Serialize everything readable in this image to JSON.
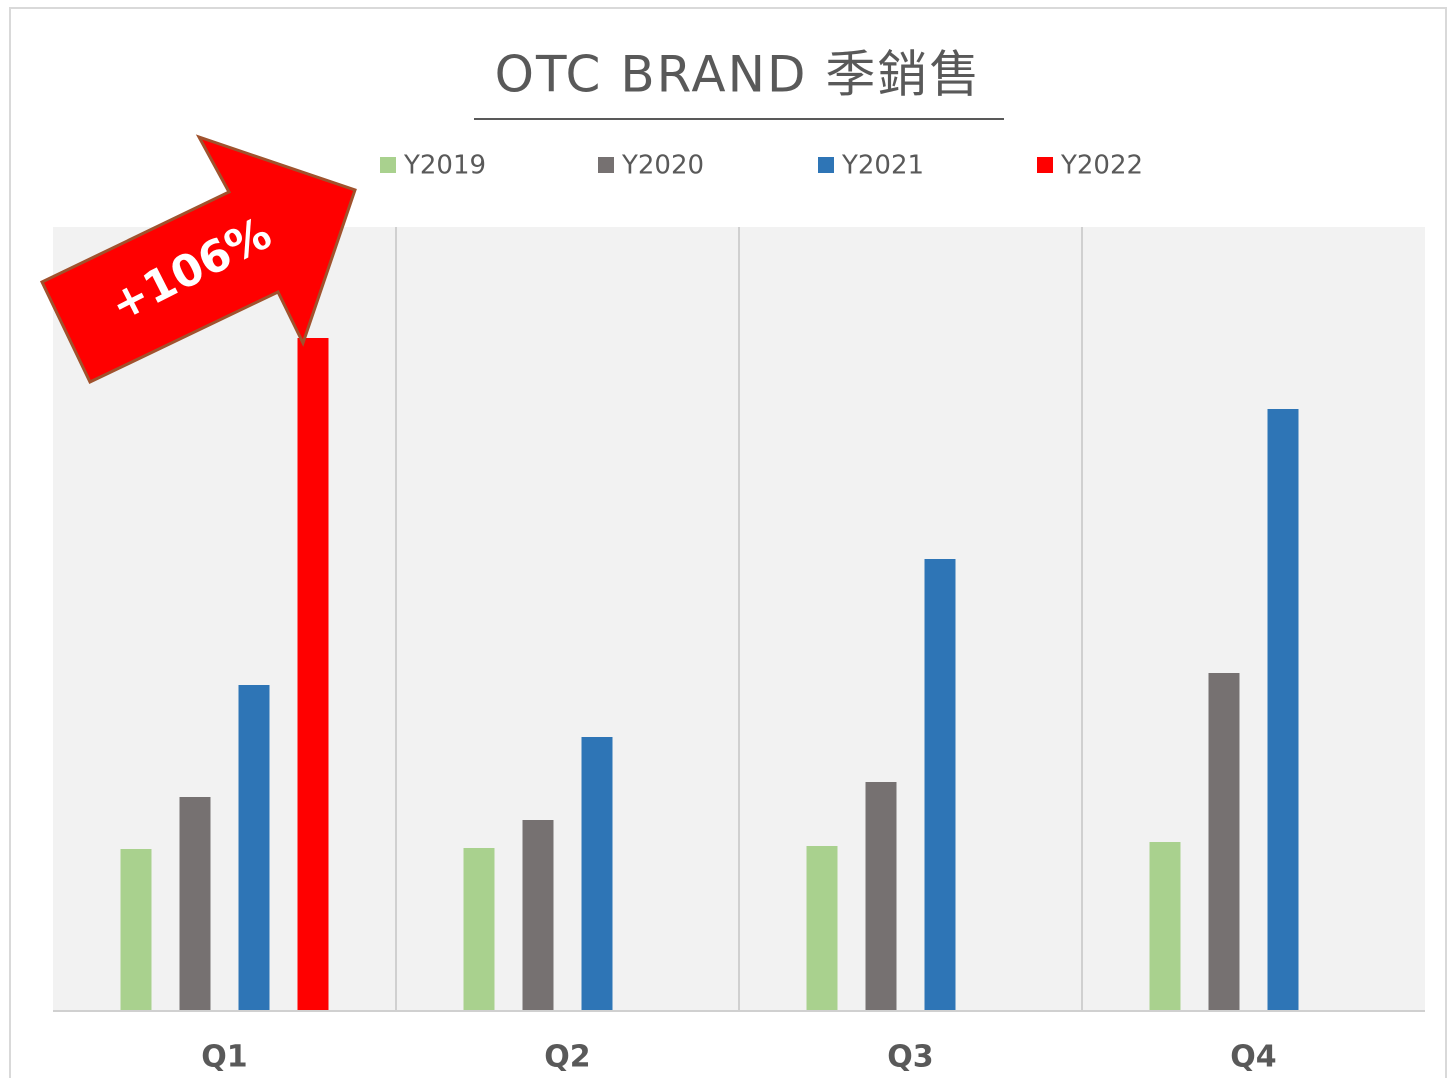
{
  "chart_data": {
    "type": "bar",
    "title": "OTC BRAND 季銷售",
    "categories": [
      "Q1",
      "Q2",
      "Q3",
      "Q4"
    ],
    "series": [
      {
        "name": "Y2019",
        "color": "#a9d18e",
        "values": [
          161,
          162,
          164,
          168
        ]
      },
      {
        "name": "Y2020",
        "color": "#767171",
        "values": [
          213,
          190,
          228,
          337
        ]
      },
      {
        "name": "Y2021",
        "color": "#2e75b6",
        "values": [
          325,
          273,
          451,
          601
        ]
      },
      {
        "name": "Y2022",
        "color": "#ff0000",
        "values": [
          672,
          null,
          null,
          null
        ]
      }
    ],
    "ylim": [
      0,
      783
    ],
    "annotation": "+106%"
  }
}
